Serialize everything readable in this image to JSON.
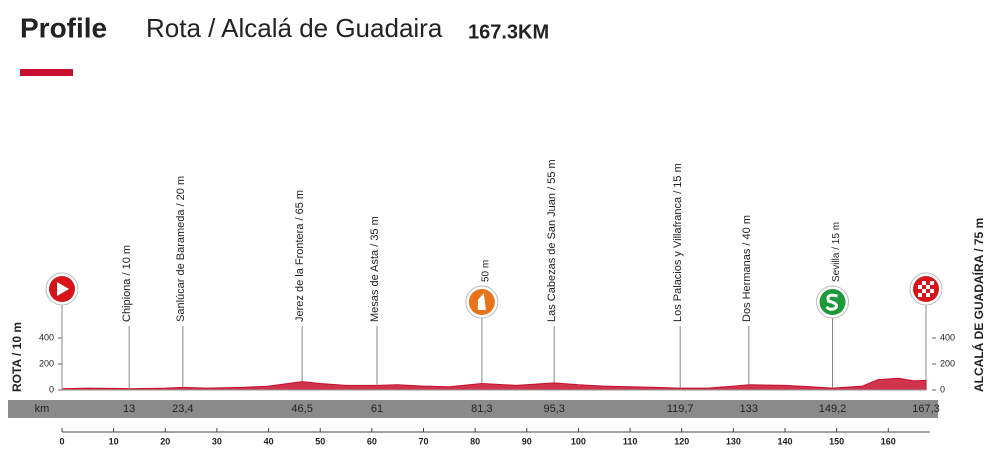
{
  "header": {
    "title": "Profile",
    "route": "Rota / Alcalá de Guadaira",
    "distance": "167.3KM"
  },
  "chart_data": {
    "type": "area",
    "color": "#c8102e",
    "x": [
      0,
      5,
      10,
      13,
      20,
      23.4,
      28,
      35,
      40,
      46.5,
      50,
      55,
      61,
      65,
      70,
      75,
      81.3,
      88,
      95.3,
      100,
      105,
      110,
      115,
      119.7,
      125,
      130,
      133,
      140,
      145,
      149.2,
      155,
      158,
      162,
      165,
      167.3
    ],
    "values": [
      10,
      15,
      12,
      10,
      15,
      20,
      15,
      20,
      30,
      65,
      50,
      35,
      35,
      40,
      30,
      25,
      50,
      35,
      55,
      40,
      30,
      25,
      20,
      15,
      15,
      30,
      40,
      35,
      25,
      15,
      30,
      80,
      90,
      70,
      75
    ],
    "xlim": [
      0,
      167.3
    ],
    "xticks": [
      0,
      10,
      20,
      30,
      40,
      50,
      60,
      70,
      80,
      90,
      100,
      110,
      120,
      130,
      140,
      150,
      160
    ],
    "ylim": [
      0,
      400
    ],
    "yticks": [
      0,
      200,
      400
    ],
    "km_axis_label": "km",
    "start": {
      "label": "ROTA / 10 m",
      "icon": "start"
    },
    "waypoints": [
      {
        "label": "Chipiona / 10 m",
        "km": 13
      },
      {
        "label": "Sanlúcar de Barameda / 20 m",
        "km": {
          "value": 23.4,
          "label": "23,4"
        }
      },
      {
        "label": "Jerez de la Frontera / 65 m",
        "km": {
          "value": 46.5,
          "label": "46,5"
        }
      },
      {
        "label": "Mesas de Asta / 35 m",
        "km": 61
      },
      {
        "label": "50 m",
        "km": {
          "value": 81.3,
          "label": "81,3"
        },
        "icon": "sprint"
      },
      {
        "label": "Las Cabezas de San Juan / 55 m",
        "km": {
          "value": 95.3,
          "label": "95,3"
        }
      },
      {
        "label": "Los Palacios y Villafranca / 15 m",
        "km": {
          "value": 119.7,
          "label": "119,7"
        }
      },
      {
        "label": "Dos Hermanas / 40 m",
        "km": 133
      },
      {
        "label": "Sevilla / 15 m",
        "km": {
          "value": 149.2,
          "label": "149,2"
        },
        "icon": "sprint-s"
      },
      {
        "label": "ALCALÁ DE GUADAÍRA / 75 m",
        "km": {
          "value": 167.3,
          "label": "167,3"
        },
        "icon": "finish"
      }
    ]
  }
}
